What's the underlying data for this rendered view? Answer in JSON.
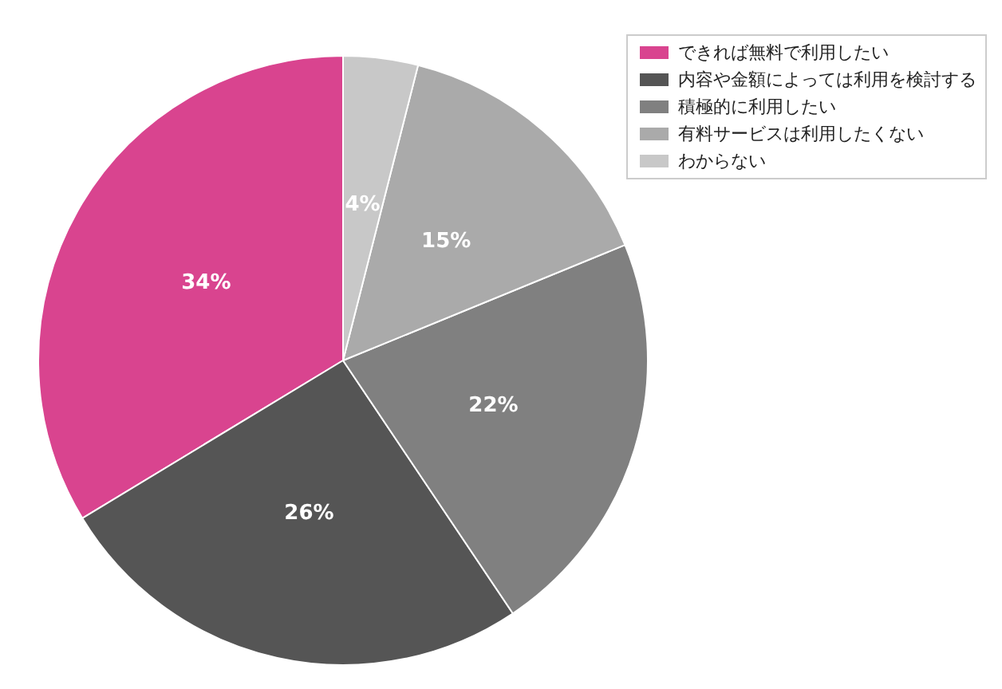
{
  "chart_data": {
    "type": "pie",
    "categories": [
      "できれば無料で利用したい",
      "内容や金額によっては利用を検討する",
      "積極的に利用したい",
      "有料サービスは利用したくない",
      "わからない"
    ],
    "values": [
      34,
      26,
      22,
      15,
      4
    ],
    "colors": [
      "#d9448f",
      "#555555",
      "#808080",
      "#aaaaaa",
      "#c8c8c8"
    ],
    "value_labels": [
      "34%",
      "26%",
      "22%",
      "15%",
      "4%"
    ],
    "legend": "top right"
  }
}
